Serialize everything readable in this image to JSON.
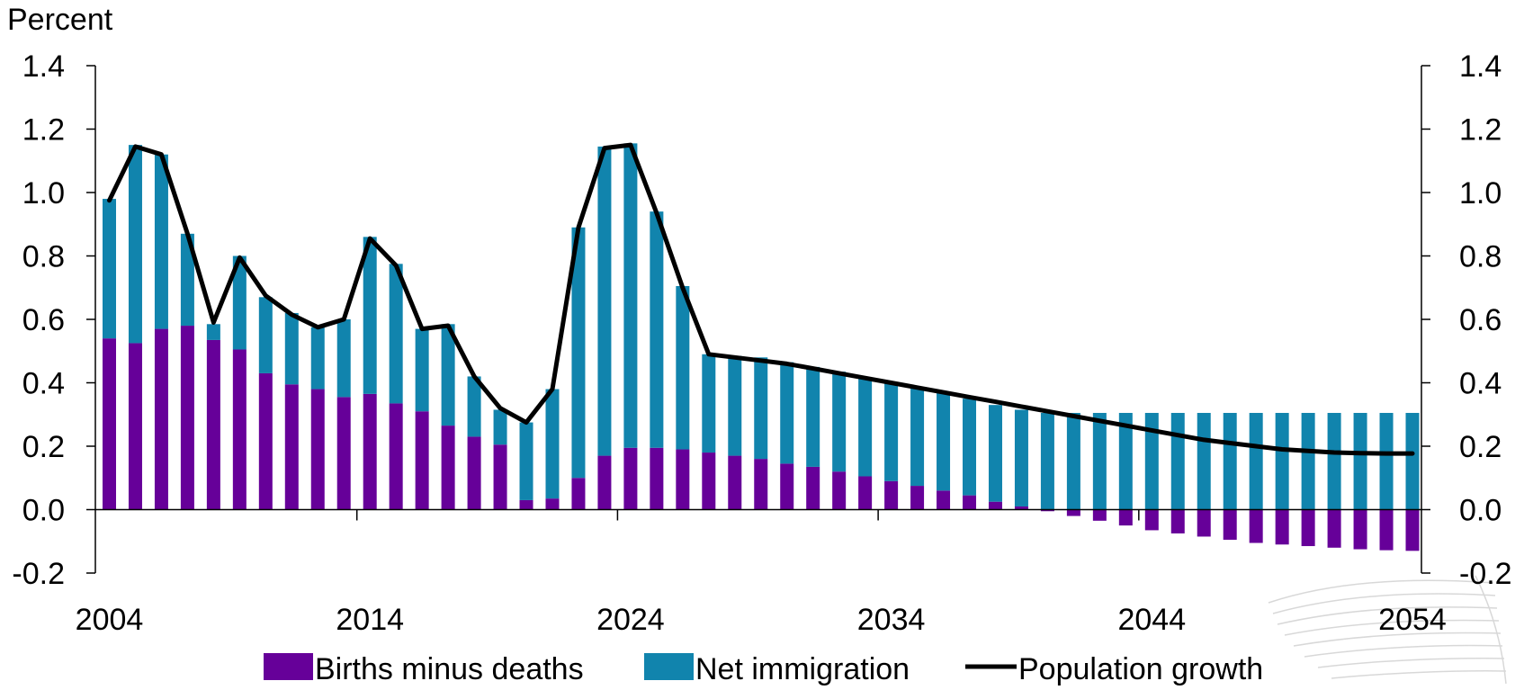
{
  "chart_data": {
    "type": "bar",
    "ylabel": "Percent",
    "ylim": [
      -0.2,
      1.4
    ],
    "yticks": [
      "1.4",
      "1.2",
      "1.0",
      "0.8",
      "0.6",
      "0.4",
      "0.2",
      "0.0",
      "-0.2"
    ],
    "ytick_values": [
      1.4,
      1.2,
      1.0,
      0.8,
      0.6,
      0.4,
      0.2,
      0.0,
      -0.2
    ],
    "xtick_labels": [
      "2004",
      "2014",
      "2024",
      "2034",
      "2044",
      "2054"
    ],
    "xtick_years": [
      2004,
      2014,
      2024,
      2034,
      2044,
      2054
    ],
    "stacked": true,
    "grid": false,
    "legend_position": "bottom",
    "x": [
      2004,
      2005,
      2006,
      2007,
      2008,
      2009,
      2010,
      2011,
      2012,
      2013,
      2014,
      2015,
      2016,
      2017,
      2018,
      2019,
      2020,
      2021,
      2022,
      2023,
      2024,
      2025,
      2026,
      2027,
      2028,
      2029,
      2030,
      2031,
      2032,
      2033,
      2034,
      2035,
      2036,
      2037,
      2038,
      2039,
      2040,
      2041,
      2042,
      2043,
      2044,
      2045,
      2046,
      2047,
      2048,
      2049,
      2050,
      2051,
      2052,
      2053,
      2054
    ],
    "series": [
      {
        "name": "Births minus deaths",
        "kind": "bar",
        "color": "#660099",
        "values": [
          0.54,
          0.525,
          0.57,
          0.58,
          0.535,
          0.505,
          0.43,
          0.395,
          0.38,
          0.355,
          0.365,
          0.335,
          0.31,
          0.265,
          0.23,
          0.205,
          0.03,
          0.035,
          0.1,
          0.17,
          0.195,
          0.195,
          0.19,
          0.18,
          0.17,
          0.16,
          0.145,
          0.135,
          0.12,
          0.105,
          0.09,
          0.075,
          0.06,
          0.045,
          0.025,
          0.01,
          -0.005,
          -0.02,
          -0.035,
          -0.05,
          -0.065,
          -0.075,
          -0.085,
          -0.095,
          -0.105,
          -0.11,
          -0.115,
          -0.12,
          -0.125,
          -0.128,
          -0.13
        ]
      },
      {
        "name": "Net immigration",
        "kind": "bar",
        "color": "#1184ad",
        "values": [
          0.44,
          0.625,
          0.55,
          0.29,
          0.05,
          0.295,
          0.24,
          0.225,
          0.195,
          0.245,
          0.495,
          0.44,
          0.26,
          0.32,
          0.19,
          0.11,
          0.245,
          0.345,
          0.79,
          0.975,
          0.96,
          0.745,
          0.515,
          0.31,
          0.315,
          0.32,
          0.32,
          0.315,
          0.315,
          0.31,
          0.31,
          0.31,
          0.31,
          0.305,
          0.305,
          0.305,
          0.305,
          0.305,
          0.305,
          0.305,
          0.305,
          0.305,
          0.305,
          0.305,
          0.305,
          0.305,
          0.305,
          0.305,
          0.305,
          0.305,
          0.305
        ]
      },
      {
        "name": "Population growth",
        "kind": "line",
        "color": "#000000",
        "values": [
          0.975,
          1.145,
          1.12,
          0.87,
          0.59,
          0.795,
          0.675,
          0.615,
          0.575,
          0.6,
          0.855,
          0.77,
          0.57,
          0.58,
          0.42,
          0.32,
          0.275,
          0.38,
          0.89,
          1.14,
          1.15,
          0.935,
          0.7,
          0.49,
          0.48,
          0.47,
          0.46,
          0.445,
          0.43,
          0.415,
          0.4,
          0.385,
          0.37,
          0.355,
          0.34,
          0.325,
          0.31,
          0.295,
          0.28,
          0.265,
          0.25,
          0.235,
          0.22,
          0.21,
          0.2,
          0.19,
          0.185,
          0.18,
          0.178,
          0.177,
          0.177
        ]
      }
    ]
  }
}
